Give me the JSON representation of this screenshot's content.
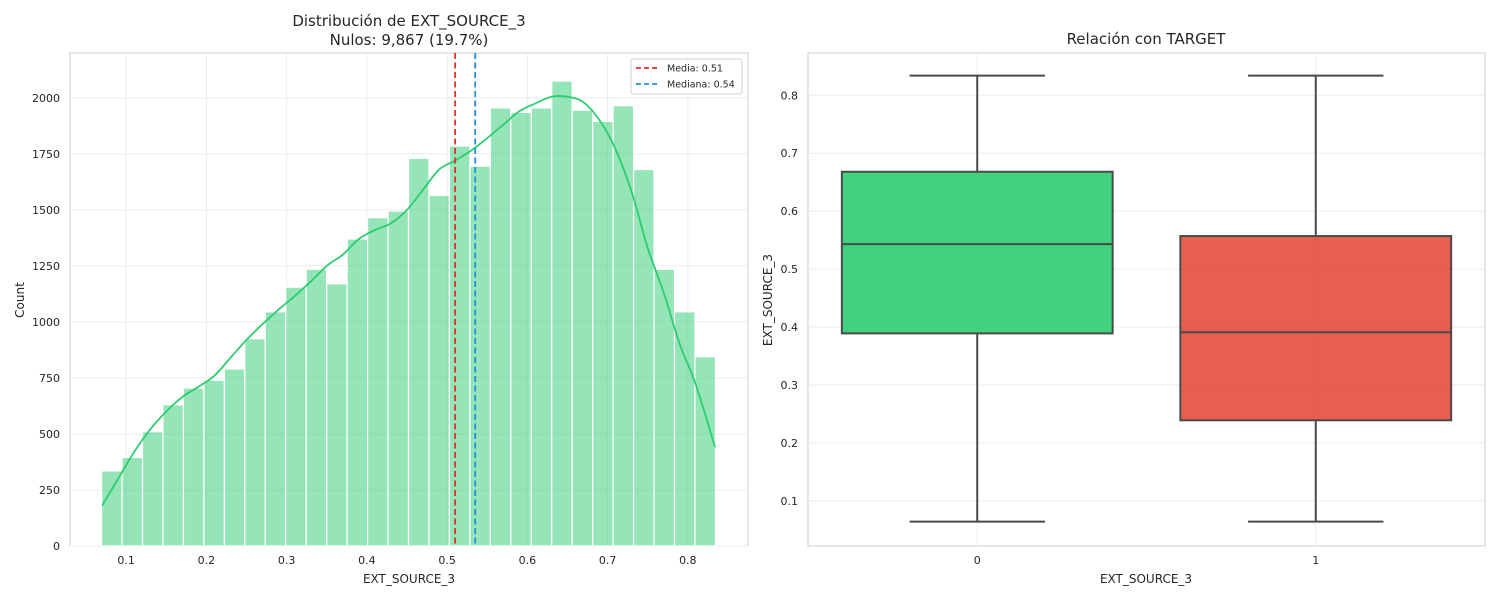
{
  "chart_data": [
    {
      "type": "histogram",
      "title": "Distribución de EXT_SOURCE_3",
      "subtitle": "Nulos: 9,867 (19.7%)",
      "xlabel": "EXT_SOURCE_3",
      "ylabel": "Count",
      "xlim": [
        0.03,
        0.875
      ],
      "ylim": [
        0,
        2200
      ],
      "xticks": [
        0.1,
        0.2,
        0.3,
        0.4,
        0.5,
        0.6,
        0.7,
        0.8
      ],
      "xtick_labels": [
        "0.1",
        "0.2",
        "0.3",
        "0.4",
        "0.5",
        "0.6",
        "0.7",
        "0.8"
      ],
      "yticks": [
        0,
        250,
        500,
        750,
        1000,
        1250,
        1500,
        1750,
        2000
      ],
      "ytick_labels": [
        "0",
        "250",
        "500",
        "750",
        "1000",
        "1250",
        "1500",
        "1750",
        "2000"
      ],
      "grid": true,
      "bin_edges": [
        0.0694,
        0.0949,
        0.1204,
        0.1459,
        0.1714,
        0.1969,
        0.2224,
        0.2479,
        0.2734,
        0.2989,
        0.3244,
        0.3499,
        0.3754,
        0.4009,
        0.4264,
        0.4519,
        0.4774,
        0.5029,
        0.5284,
        0.5539,
        0.5794,
        0.6049,
        0.6304,
        0.6559,
        0.6814,
        0.7069,
        0.7324,
        0.7579,
        0.7834,
        0.8089,
        0.8344
      ],
      "counts": [
        335,
        395,
        510,
        630,
        705,
        740,
        790,
        925,
        1045,
        1155,
        1235,
        1170,
        1370,
        1465,
        1495,
        1730,
        1565,
        1785,
        1695,
        1955,
        1935,
        1955,
        2075,
        1945,
        1895,
        1965,
        1680,
        1235,
        1045,
        845
      ],
      "bar_color": "#2ecc71",
      "kde": {
        "color": "#2ecc71",
        "x": [
          0.07,
          0.09,
          0.11,
          0.13,
          0.15,
          0.17,
          0.19,
          0.21,
          0.23,
          0.25,
          0.27,
          0.29,
          0.31,
          0.33,
          0.35,
          0.37,
          0.39,
          0.41,
          0.43,
          0.45,
          0.47,
          0.49,
          0.51,
          0.53,
          0.55,
          0.57,
          0.59,
          0.61,
          0.63,
          0.65,
          0.67,
          0.69,
          0.71,
          0.73,
          0.75,
          0.77,
          0.79,
          0.81,
          0.834
        ],
        "y": [
          180,
          300,
          420,
          520,
          600,
          665,
          710,
          760,
          840,
          920,
          990,
          1055,
          1115,
          1180,
          1250,
          1300,
          1370,
          1410,
          1440,
          1500,
          1590,
          1680,
          1720,
          1765,
          1820,
          1880,
          1940,
          1975,
          2005,
          2005,
          1980,
          1900,
          1770,
          1580,
          1330,
          1130,
          900,
          720,
          440
        ]
      },
      "vlines": [
        {
          "label": "Media: 0.51",
          "x": 0.51,
          "color": "#e0302a",
          "style": "dashed"
        },
        {
          "label": "Mediana: 0.54",
          "x": 0.535,
          "color": "#1f8fe0",
          "style": "dashed"
        }
      ],
      "legend_position": "top-right"
    },
    {
      "type": "boxplot",
      "title": "Relación con TARGET",
      "xlabel": "EXT_SOURCE_3",
      "ylabel": "EXT_SOURCE_3",
      "ylim": [
        0.022,
        0.873
      ],
      "yticks": [
        0.1,
        0.2,
        0.3,
        0.4,
        0.5,
        0.6,
        0.7,
        0.8
      ],
      "ytick_labels": [
        "0.1",
        "0.2",
        "0.3",
        "0.4",
        "0.5",
        "0.6",
        "0.7",
        "0.8"
      ],
      "grid": true,
      "categories": [
        "0",
        "1"
      ],
      "boxes": [
        {
          "category": "0",
          "whislo": 0.064,
          "q1": 0.389,
          "median": 0.543,
          "q3": 0.668,
          "whishi": 0.834,
          "color": "#2ecc71"
        },
        {
          "category": "1",
          "whislo": 0.064,
          "q1": 0.239,
          "median": 0.391,
          "q3": 0.557,
          "whishi": 0.834,
          "color": "#e74c3c"
        }
      ]
    }
  ]
}
